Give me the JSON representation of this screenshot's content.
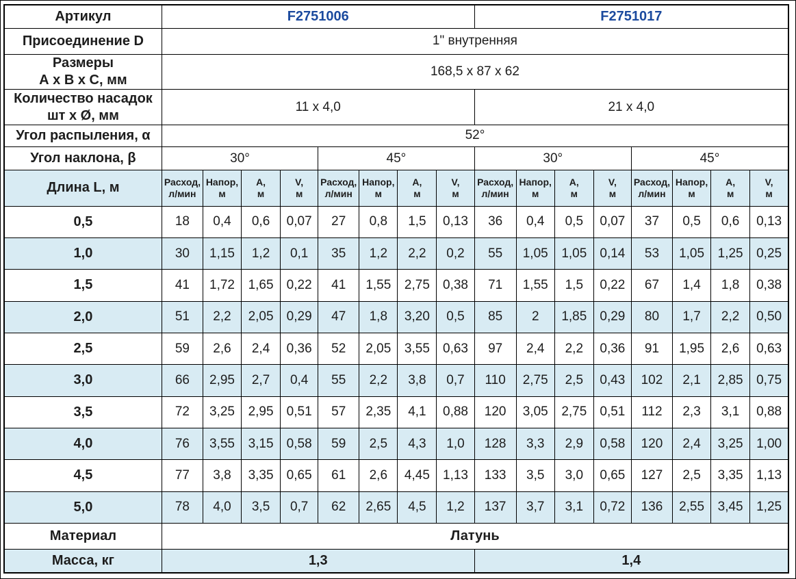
{
  "colors": {
    "row_alt_bg": "#d8ebf3",
    "article_blue": "#1b4a9e",
    "border": "#000000"
  },
  "rows": {
    "article": {
      "label": "Артикул",
      "left": "F2751006",
      "right": "F2751017"
    },
    "connection": {
      "label": "Присоединение D",
      "value": "1\" внутренняя"
    },
    "dimensions": {
      "label_line1": "Размеры",
      "label_line2": "А х В х С, мм",
      "value": "168,5 x 87 x 62"
    },
    "nozzles": {
      "label_line1": "Количество насадок",
      "label_line2": "шт х Ø, мм",
      "left": "11 x 4,0",
      "right": "21 x 4,0"
    },
    "spray_angle": {
      "label": "Угол распыления, α",
      "value": "52°"
    },
    "tilt_angle": {
      "label": "Угол наклона, β",
      "values": [
        "30°",
        "45°",
        "30°",
        "45°"
      ]
    },
    "length_header": {
      "label": "Длина L, м",
      "col_headers": [
        {
          "line1": "Расход,",
          "line2": "л/мин"
        },
        {
          "line1": "Напор,",
          "line2": "м"
        },
        {
          "line1": "А,",
          "line2": "м"
        },
        {
          "line1": "V,",
          "line2": "м"
        }
      ],
      "group_count": 4
    },
    "data_rows": [
      {
        "length": "0,5",
        "values": [
          "18",
          "0,4",
          "0,6",
          "0,07",
          "27",
          "0,8",
          "1,5",
          "0,13",
          "36",
          "0,4",
          "0,5",
          "0,07",
          "37",
          "0,5",
          "0,6",
          "0,13"
        ]
      },
      {
        "length": "1,0",
        "values": [
          "30",
          "1,15",
          "1,2",
          "0,1",
          "35",
          "1,2",
          "2,2",
          "0,2",
          "55",
          "1,05",
          "1,05",
          "0,14",
          "53",
          "1,05",
          "1,25",
          "0,25"
        ]
      },
      {
        "length": "1,5",
        "values": [
          "41",
          "1,72",
          "1,65",
          "0,22",
          "41",
          "1,55",
          "2,75",
          "0,38",
          "71",
          "1,55",
          "1,5",
          "0,22",
          "67",
          "1,4",
          "1,8",
          "0,38"
        ]
      },
      {
        "length": "2,0",
        "values": [
          "51",
          "2,2",
          "2,05",
          "0,29",
          "47",
          "1,8",
          "3,20",
          "0,5",
          "85",
          "2",
          "1,85",
          "0,29",
          "80",
          "1,7",
          "2,2",
          "0,50"
        ]
      },
      {
        "length": "2,5",
        "values": [
          "59",
          "2,6",
          "2,4",
          "0,36",
          "52",
          "2,05",
          "3,55",
          "0,63",
          "97",
          "2,4",
          "2,2",
          "0,36",
          "91",
          "1,95",
          "2,6",
          "0,63"
        ]
      },
      {
        "length": "3,0",
        "values": [
          "66",
          "2,95",
          "2,7",
          "0,4",
          "55",
          "2,2",
          "3,8",
          "0,7",
          "110",
          "2,75",
          "2,5",
          "0,43",
          "102",
          "2,1",
          "2,85",
          "0,75"
        ]
      },
      {
        "length": "3,5",
        "values": [
          "72",
          "3,25",
          "2,95",
          "0,51",
          "57",
          "2,35",
          "4,1",
          "0,88",
          "120",
          "3,05",
          "2,75",
          "0,51",
          "112",
          "2,3",
          "3,1",
          "0,88"
        ]
      },
      {
        "length": "4,0",
        "values": [
          "76",
          "3,55",
          "3,15",
          "0,58",
          "59",
          "2,5",
          "4,3",
          "1,0",
          "128",
          "3,3",
          "2,9",
          "0,58",
          "120",
          "2,4",
          "3,25",
          "1,00"
        ]
      },
      {
        "length": "4,5",
        "values": [
          "77",
          "3,8",
          "3,35",
          "0,65",
          "61",
          "2,6",
          "4,45",
          "1,13",
          "133",
          "3,5",
          "3,0",
          "0,65",
          "127",
          "2,5",
          "3,35",
          "1,13"
        ]
      },
      {
        "length": "5,0",
        "values": [
          "78",
          "4,0",
          "3,5",
          "0,7",
          "62",
          "2,65",
          "4,5",
          "1,2",
          "137",
          "3,7",
          "3,1",
          "0,72",
          "136",
          "2,55",
          "3,45",
          "1,25"
        ]
      }
    ],
    "material": {
      "label": "Материал",
      "value": "Латунь"
    },
    "mass": {
      "label": "Масса, кг",
      "left": "1,3",
      "right": "1,4"
    }
  }
}
